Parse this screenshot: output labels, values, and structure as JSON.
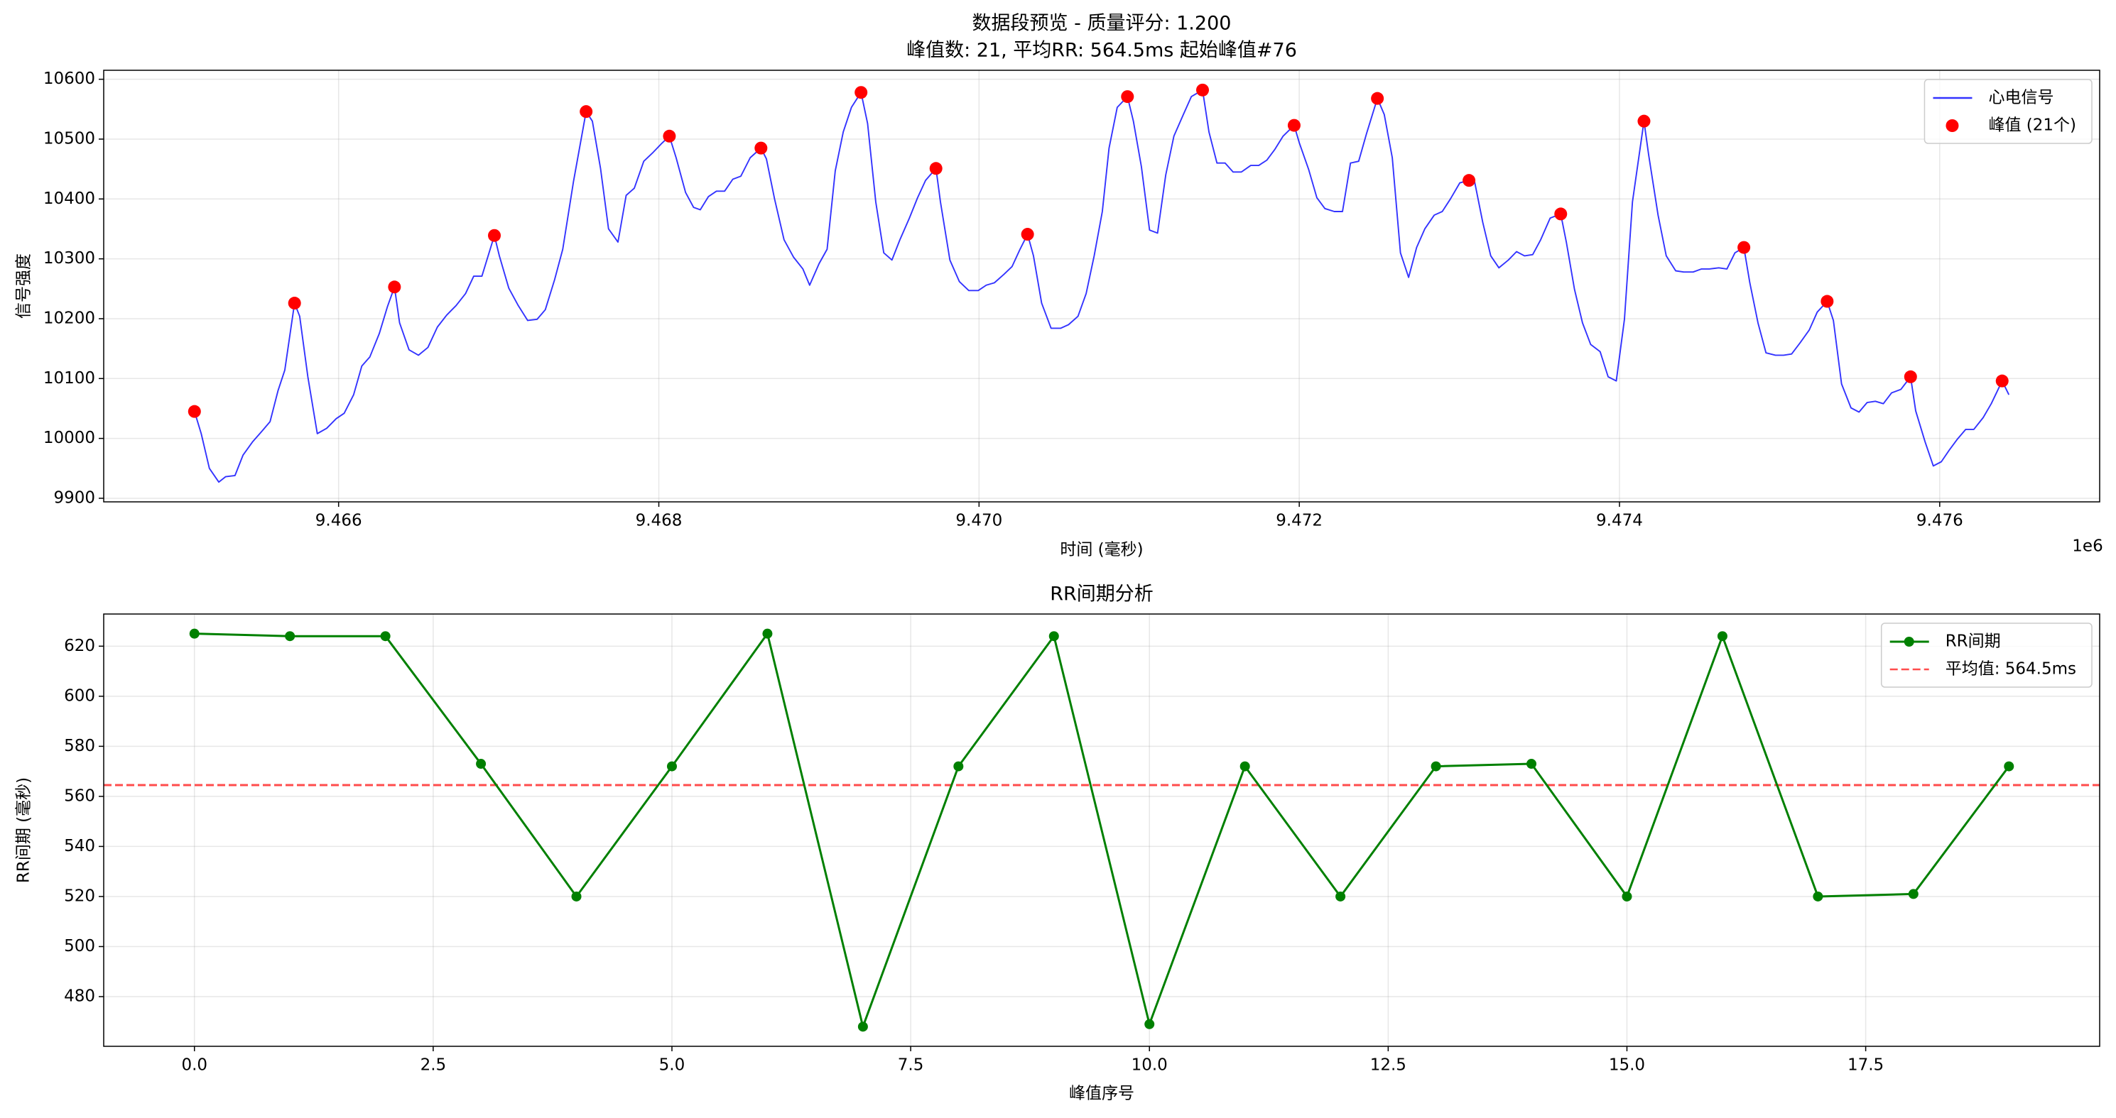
{
  "chart_data": [
    {
      "type": "line",
      "title": "数据段预览 - 质量评分: 1.200",
      "subtitle": "峰值数: 21, 平均RR: 564.5ms 起始峰值#76",
      "xlabel": "时间 (毫秒)",
      "ylabel": "信号强度",
      "x_offset_label": "1e6",
      "xlim": [
        9464533,
        9476999
      ],
      "ylim": [
        9894,
        10615
      ],
      "xticks": [
        {
          "value": 9466000,
          "label": "9.466"
        },
        {
          "value": 9468000,
          "label": "9.468"
        },
        {
          "value": 9470000,
          "label": "9.470"
        },
        {
          "value": 9472000,
          "label": "9.472"
        },
        {
          "value": 9474000,
          "label": "9.474"
        },
        {
          "value": 9476000,
          "label": "9.476"
        }
      ],
      "yticks": [
        9900,
        10000,
        10100,
        10200,
        10300,
        10400,
        10500,
        10600
      ],
      "grid": true,
      "legend": "upper right",
      "series": [
        {
          "name": "心电信号",
          "color": "#0000ff",
          "mode": "lines",
          "x": [
            9465100,
            9465142,
            9465193,
            9465252,
            9465294,
            9465353,
            9465403,
            9465462,
            9465521,
            9465572,
            9465622,
            9465664,
            9465725,
            9465757,
            9465808,
            9465867,
            9465926,
            9465985,
            9466035,
            9466094,
            9466145,
            9466195,
            9466254,
            9466305,
            9466349,
            9466381,
            9466440,
            9466499,
            9466558,
            9466617,
            9466675,
            9466734,
            9466793,
            9466844,
            9466895,
            9466973,
            9467004,
            9467063,
            9467122,
            9467181,
            9467240,
            9467291,
            9467349,
            9467400,
            9467467,
            9467546,
            9467585,
            9467636,
            9467686,
            9467745,
            9467796,
            9467847,
            9467906,
            9467965,
            9468015,
            9468066,
            9468108,
            9468167,
            9468217,
            9468259,
            9468310,
            9468360,
            9468411,
            9468462,
            9468512,
            9468571,
            9468638,
            9468672,
            9468723,
            9468782,
            9468841,
            9468900,
            9468942,
            9469001,
            9469051,
            9469102,
            9469152,
            9469203,
            9469263,
            9469304,
            9469355,
            9469405,
            9469456,
            9469506,
            9469565,
            9469616,
            9469666,
            9469731,
            9469759,
            9469818,
            9469877,
            9469936,
            9469995,
            9470045,
            9470096,
            9470155,
            9470206,
            9470256,
            9470303,
            9470340,
            9470391,
            9470450,
            9470509,
            9470559,
            9470618,
            9470669,
            9470719,
            9470770,
            9470812,
            9470863,
            9470927,
            9470964,
            9471014,
            9471065,
            9471115,
            9471166,
            9471217,
            9471276,
            9471326,
            9471396,
            9471436,
            9471486,
            9471537,
            9471587,
            9471638,
            9471697,
            9471747,
            9471798,
            9471848,
            9471899,
            9471968,
            9472000,
            9472059,
            9472110,
            9472160,
            9472219,
            9472270,
            9472320,
            9472371,
            9472421,
            9472488,
            9472531,
            9472581,
            9472632,
            9472683,
            9472733,
            9472784,
            9472843,
            9472893,
            9472944,
            9473003,
            9473060,
            9473095,
            9473146,
            9473196,
            9473247,
            9473306,
            9473357,
            9473407,
            9473458,
            9473508,
            9473567,
            9473633,
            9473668,
            9473719,
            9473769,
            9473820,
            9473879,
            9473929,
            9473980,
            9474031,
            9474081,
            9474153,
            9474182,
            9474241,
            9474292,
            9474351,
            9474401,
            9474460,
            9474511,
            9474561,
            9474620,
            9474671,
            9474721,
            9474777,
            9474814,
            9474865,
            9474915,
            9474974,
            9475025,
            9475075,
            9475126,
            9475185,
            9475235,
            9475297,
            9475336,
            9475387,
            9475446,
            9475496,
            9475547,
            9475598,
            9475648,
            9475699,
            9475758,
            9475818,
            9475850,
            9475909,
            9475960,
            9476010,
            9476061,
            9476111,
            9476162,
            9476213,
            9476272,
            9476322,
            9476390,
            9476432
          ],
          "values": [
            10045,
            10008,
            9950,
            9927,
            9936,
            9938,
            9972,
            9994,
            10012,
            10028,
            10080,
            10114,
            10226,
            10204,
            10103,
            10008,
            10017,
            10033,
            10042,
            10073,
            10121,
            10136,
            10175,
            10220,
            10253,
            10193,
            10148,
            10139,
            10152,
            10186,
            10206,
            10222,
            10242,
            10271,
            10271,
            10339,
            10305,
            10251,
            10222,
            10197,
            10199,
            10215,
            10265,
            10316,
            10429,
            10546,
            10530,
            10451,
            10350,
            10328,
            10406,
            10418,
            10463,
            10478,
            10492,
            10505,
            10469,
            10411,
            10386,
            10382,
            10404,
            10413,
            10413,
            10433,
            10438,
            10469,
            10485,
            10467,
            10400,
            10332,
            10303,
            10283,
            10256,
            10292,
            10316,
            10447,
            10512,
            10553,
            10578,
            10526,
            10395,
            10310,
            10298,
            10332,
            10368,
            10402,
            10431,
            10451,
            10395,
            10298,
            10262,
            10247,
            10247,
            10256,
            10260,
            10274,
            10287,
            10316,
            10341,
            10305,
            10226,
            10184,
            10184,
            10190,
            10204,
            10242,
            10305,
            10379,
            10485,
            10553,
            10571,
            10530,
            10454,
            10348,
            10343,
            10440,
            10505,
            10541,
            10571,
            10582,
            10512,
            10460,
            10460,
            10445,
            10445,
            10456,
            10456,
            10465,
            10483,
            10505,
            10523,
            10494,
            10449,
            10402,
            10384,
            10379,
            10379,
            10460,
            10463,
            10510,
            10568,
            10541,
            10469,
            10310,
            10269,
            10319,
            10350,
            10373,
            10379,
            10400,
            10427,
            10431,
            10429,
            10361,
            10305,
            10285,
            10298,
            10312,
            10305,
            10307,
            10332,
            10368,
            10375,
            10328,
            10249,
            10193,
            10157,
            10145,
            10103,
            10096,
            10199,
            10395,
            10530,
            10474,
            10373,
            10305,
            10280,
            10278,
            10278,
            10283,
            10283,
            10285,
            10283,
            10310,
            10319,
            10260,
            10193,
            10143,
            10139,
            10139,
            10141,
            10159,
            10181,
            10211,
            10229,
            10197,
            10091,
            10051,
            10044,
            10060,
            10062,
            10058,
            10076,
            10082,
            10103,
            10046,
            9994,
            9954,
            9961,
            9981,
            9999,
            10015,
            10015,
            10035,
            10058,
            10096,
            10073
          ]
        },
        {
          "name": "峰值 (21个)",
          "color": "#ff0000",
          "mode": "markers",
          "x": [
            9465100,
            9465725,
            9466349,
            9466973,
            9467546,
            9468066,
            9468638,
            9469263,
            9469731,
            9470303,
            9470927,
            9471396,
            9471968,
            9472488,
            9473060,
            9473633,
            9474153,
            9474777,
            9475297,
            9475818,
            9476390
          ],
          "values": [
            10045,
            10226,
            10253,
            10339,
            10546,
            10505,
            10485,
            10578,
            10451,
            10341,
            10571,
            10582,
            10523,
            10568,
            10431,
            10375,
            10530,
            10319,
            10229,
            10103,
            10096
          ]
        }
      ]
    },
    {
      "type": "line",
      "title": "RR间期分析",
      "xlabel": "峰值序号",
      "ylabel": "RR间期 (毫秒)",
      "xlim": [
        -0.95,
        19.95
      ],
      "ylim": [
        460.15,
        632.85
      ],
      "xticks": [
        {
          "value": 0,
          "label": "0.0"
        },
        2.5,
        {
          "value": 5,
          "label": "5.0"
        },
        7.5,
        {
          "value": 10,
          "label": "10.0"
        },
        12.5,
        {
          "value": 15,
          "label": "15.0"
        },
        17.5
      ],
      "yticks": [
        480,
        500,
        520,
        540,
        560,
        580,
        600,
        620
      ],
      "grid": true,
      "legend": "upper right",
      "series": [
        {
          "name": "RR间期",
          "color": "#008000",
          "mode": "lines+markers",
          "x": [
            0,
            1,
            2,
            3,
            4,
            5,
            6,
            7,
            8,
            9,
            10,
            11,
            12,
            13,
            14,
            15,
            16,
            17,
            18,
            19
          ],
          "values": [
            625,
            624,
            624,
            573,
            520,
            572,
            625,
            468,
            572,
            624,
            469,
            572,
            520,
            572,
            573,
            520,
            624,
            520,
            521,
            572
          ]
        }
      ],
      "hline": {
        "name": "平均值: 564.5ms",
        "value": 564.5,
        "color": "#ff0000",
        "style": "dashed"
      }
    }
  ]
}
